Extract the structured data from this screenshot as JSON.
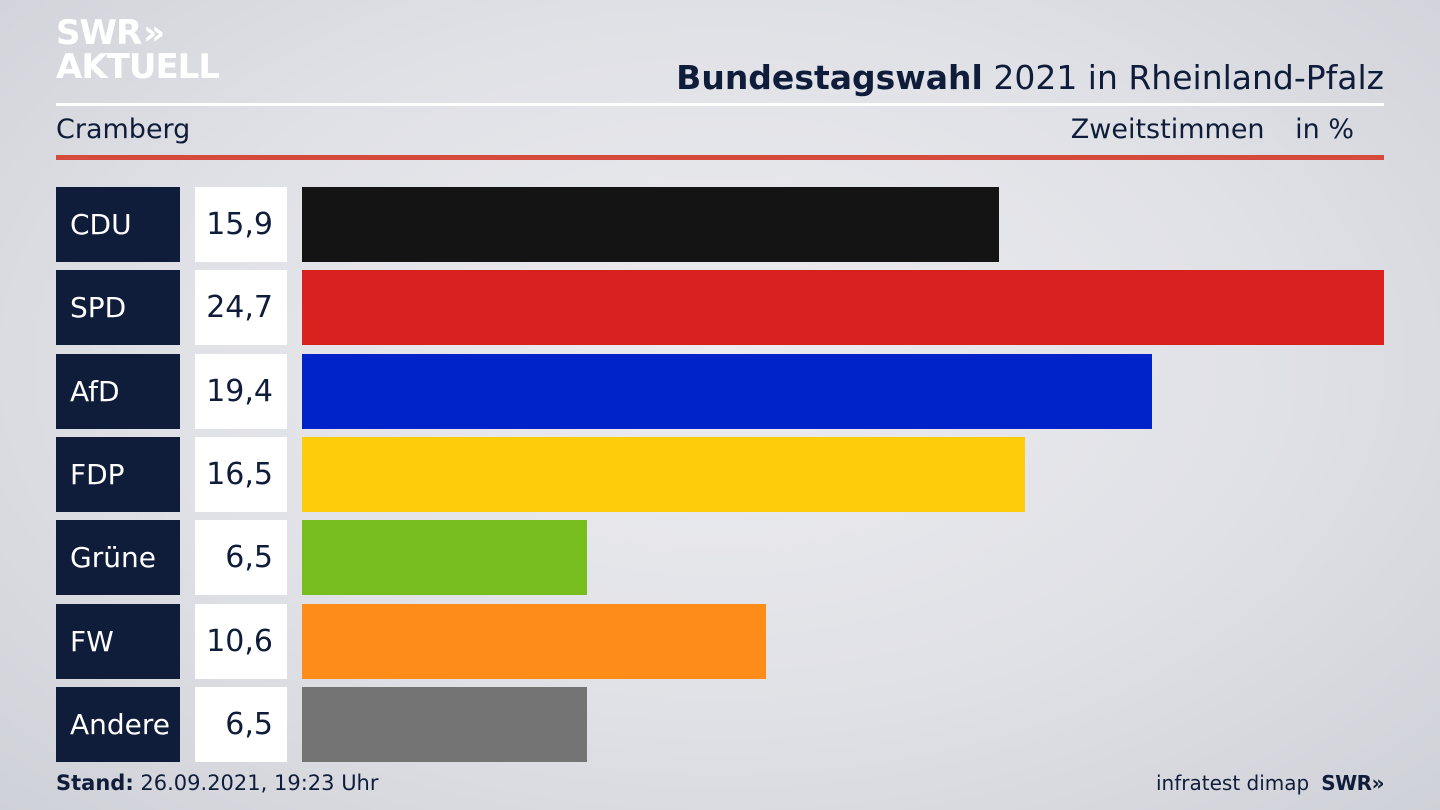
{
  "logo": {
    "line1": "SWR",
    "line2": "AKTUELL",
    "chevrons": "»"
  },
  "header": {
    "title_bold": "Bundestagswahl",
    "title_rest": "2021 in Rheinland-Pfalz",
    "region": "Cramberg",
    "metric": "Zweitstimmen",
    "unit": "in %"
  },
  "chart_data": {
    "type": "bar",
    "orientation": "horizontal",
    "categories": [
      "CDU",
      "SPD",
      "AfD",
      "FDP",
      "Grüne",
      "FW",
      "Andere"
    ],
    "values": [
      15.9,
      24.7,
      19.4,
      16.5,
      6.5,
      10.6,
      6.5
    ],
    "value_labels": [
      "15,9",
      "24,7",
      "19,4",
      "16,5",
      "6,5",
      "10,6",
      "6,5"
    ],
    "colors": [
      "#141414",
      "#d8201f",
      "#0022c9",
      "#fecc0a",
      "#77bd1e",
      "#fe8c18",
      "#747474"
    ],
    "xlim": [
      0,
      24.7
    ],
    "grid": false,
    "legend": "none"
  },
  "footer": {
    "stand_label": "Stand:",
    "stand_value": "26.09.2021, 19:23 Uhr",
    "source": "infratest dimap",
    "brand": "SWR",
    "brand_chevrons": "»"
  }
}
